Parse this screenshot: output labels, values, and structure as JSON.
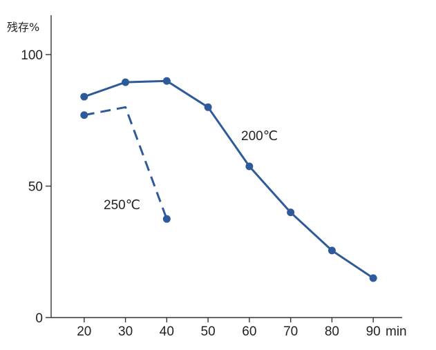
{
  "chart_data": {
    "type": "line",
    "title": "",
    "ylabel": "残存%",
    "xlabel": "min",
    "x_ticks": [
      "20",
      "30",
      "40",
      "50",
      "60",
      "70",
      "80",
      "90"
    ],
    "y_ticks": [
      "0",
      "50",
      "100"
    ],
    "xlim": [
      12,
      97
    ],
    "ylim": [
      0,
      115
    ],
    "grid": false,
    "colors": {
      "line": "#2f5a9a",
      "axis": "#333333",
      "text": "#222222"
    },
    "series": [
      {
        "name": "200℃",
        "style": "solid",
        "x": [
          20,
          30,
          40,
          50,
          60,
          70,
          80,
          90
        ],
        "y": [
          84,
          89.5,
          90,
          80,
          57.5,
          40,
          25.5,
          15
        ]
      },
      {
        "name": "250℃",
        "style": "dashed",
        "x": [
          20,
          30,
          40
        ],
        "y": [
          77,
          80,
          37.5
        ],
        "marker_mask": [
          true,
          false,
          true
        ]
      }
    ]
  }
}
